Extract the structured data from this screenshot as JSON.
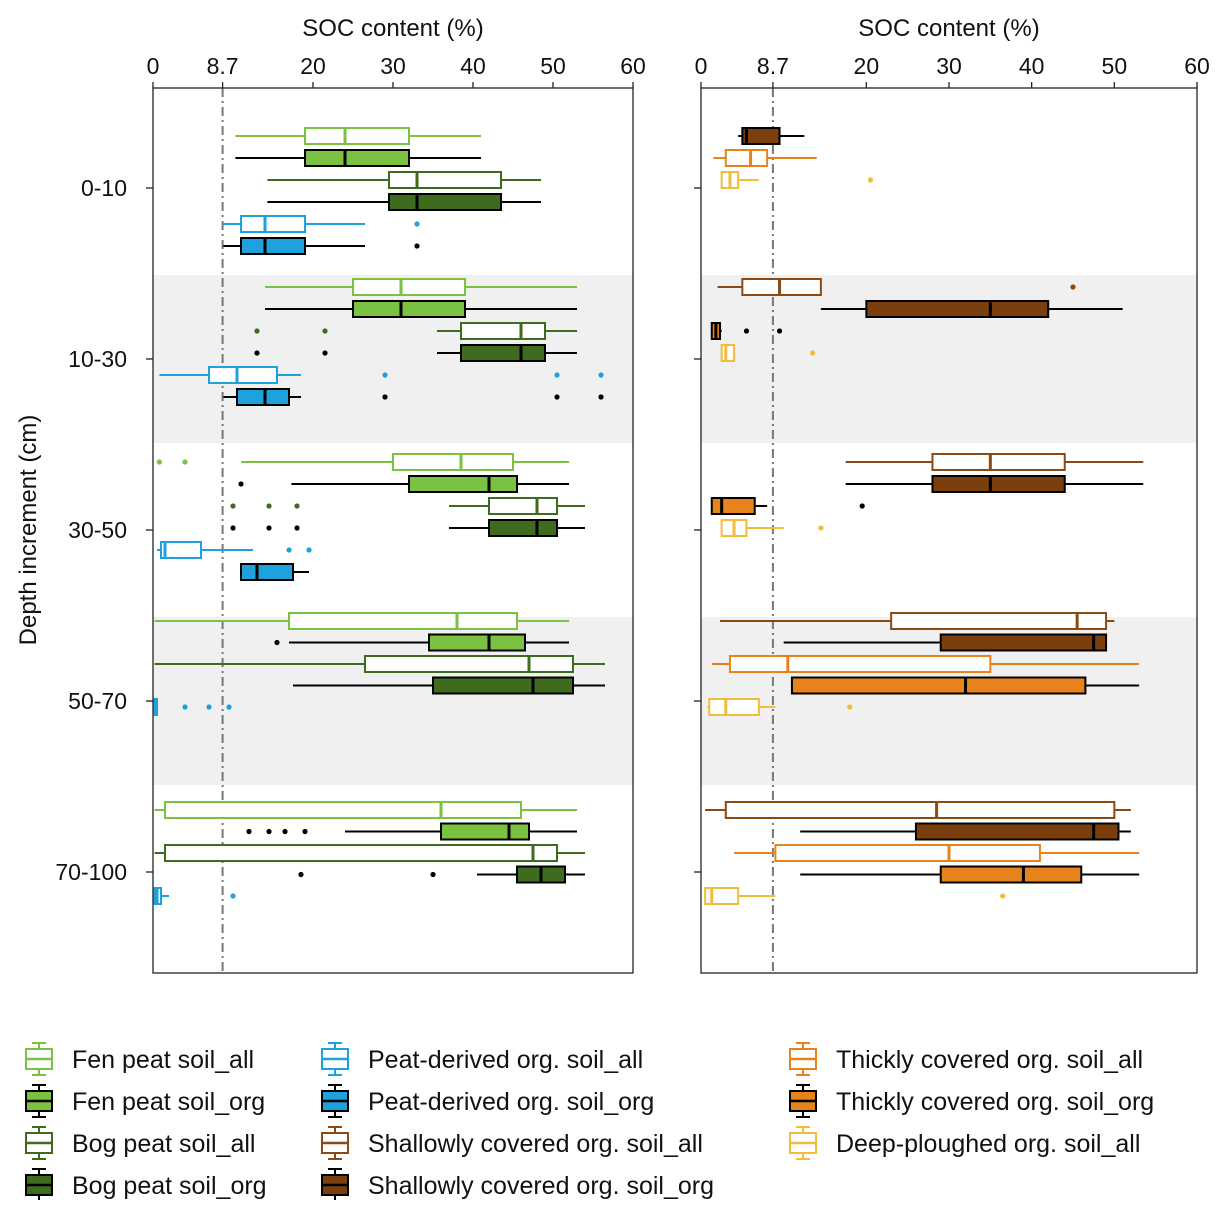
{
  "chart_data": {
    "type": "box",
    "ylabel": "Depth increment (cm)",
    "depth_increments": [
      "0-10",
      "10-30",
      "30-50",
      "50-70",
      "70-100"
    ],
    "reference_line": 8.7,
    "panels": [
      {
        "name": "left",
        "xlabel": "SOC content (%)",
        "xlim": [
          0,
          60
        ],
        "xticks": [
          "0",
          "8.7",
          "20",
          "30",
          "40",
          "50",
          "60"
        ],
        "xtick_values": [
          0,
          8.7,
          20,
          30,
          40,
          50,
          60
        ],
        "boxes": [
          {
            "depth": "0-10",
            "slot": 0,
            "series": "Fen peat soil_all",
            "whislo": 10.3,
            "q1": 19,
            "med": 24,
            "q3": 32,
            "whishi": 41,
            "outliers": []
          },
          {
            "depth": "0-10",
            "slot": 1,
            "series": "Fen peat soil_org",
            "whislo": 10.3,
            "q1": 19,
            "med": 24,
            "q3": 32,
            "whishi": 41,
            "outliers": []
          },
          {
            "depth": "0-10",
            "slot": 2,
            "series": "Bog peat soil_all",
            "whislo": 14.3,
            "q1": 29.5,
            "med": 33,
            "q3": 43.5,
            "whishi": 48.5,
            "outliers": []
          },
          {
            "depth": "0-10",
            "slot": 3,
            "series": "Bog peat soil_org",
            "whislo": 14.3,
            "q1": 29.5,
            "med": 33,
            "q3": 43.5,
            "whishi": 48.5,
            "outliers": []
          },
          {
            "depth": "0-10",
            "slot": 4,
            "series": "Peat-derived org. soil_all",
            "whislo": 8.8,
            "q1": 11,
            "med": 14,
            "q3": 19,
            "whishi": 26.5,
            "outliers": [
              33
            ]
          },
          {
            "depth": "0-10",
            "slot": 5,
            "series": "Peat-derived org. soil_org",
            "whislo": 8.8,
            "q1": 11,
            "med": 14,
            "q3": 19,
            "whishi": 26.5,
            "outliers": [
              33
            ]
          },
          {
            "depth": "10-30",
            "slot": 0,
            "series": "Fen peat soil_all",
            "whislo": 14,
            "q1": 25,
            "med": 31,
            "q3": 39,
            "whishi": 53,
            "outliers": []
          },
          {
            "depth": "10-30",
            "slot": 1,
            "series": "Fen peat soil_org",
            "whislo": 14,
            "q1": 25,
            "med": 31,
            "q3": 39,
            "whishi": 53,
            "outliers": []
          },
          {
            "depth": "10-30",
            "slot": 2,
            "series": "Bog peat soil_all",
            "whislo": 35.5,
            "q1": 38.5,
            "med": 46,
            "q3": 49,
            "whishi": 53,
            "outliers": [
              13,
              21.5
            ]
          },
          {
            "depth": "10-30",
            "slot": 3,
            "series": "Bog peat soil_org",
            "whislo": 35.5,
            "q1": 38.5,
            "med": 46,
            "q3": 49,
            "whishi": 53,
            "outliers": [
              13,
              21.5
            ]
          },
          {
            "depth": "10-30",
            "slot": 4,
            "series": "Peat-derived org. soil_all",
            "whislo": 0.8,
            "q1": 7,
            "med": 10.5,
            "q3": 15.5,
            "whishi": 18.5,
            "outliers": [
              29,
              50.5,
              56
            ]
          },
          {
            "depth": "10-30",
            "slot": 5,
            "series": "Peat-derived org. soil_org",
            "whislo": 8.8,
            "q1": 10.5,
            "med": 14,
            "q3": 17,
            "whishi": 18.5,
            "outliers": [
              29,
              50.5,
              56
            ]
          },
          {
            "depth": "30-50",
            "slot": 0,
            "series": "Fen peat soil_all",
            "whislo": 11,
            "q1": 30,
            "med": 38.5,
            "q3": 45,
            "whishi": 52,
            "outliers": [
              0.8,
              4
            ]
          },
          {
            "depth": "30-50",
            "slot": 1,
            "series": "Fen peat soil_org",
            "whislo": 17.3,
            "q1": 32,
            "med": 42,
            "q3": 45.5,
            "whishi": 52,
            "outliers": [
              11
            ]
          },
          {
            "depth": "30-50",
            "slot": 2,
            "series": "Bog peat soil_all",
            "whislo": 37,
            "q1": 42,
            "med": 48,
            "q3": 50.5,
            "whishi": 54,
            "outliers": [
              10,
              14.5,
              18
            ]
          },
          {
            "depth": "30-50",
            "slot": 3,
            "series": "Bog peat soil_org",
            "whislo": 37,
            "q1": 42,
            "med": 48,
            "q3": 50.5,
            "whishi": 54,
            "outliers": [
              10,
              14.5,
              18
            ]
          },
          {
            "depth": "30-50",
            "slot": 4,
            "series": "Peat-derived org. soil_all",
            "whislo": 0.5,
            "q1": 1,
            "med": 1.5,
            "q3": 6,
            "whishi": 12.5,
            "outliers": [
              17,
              19.5
            ]
          },
          {
            "depth": "30-50",
            "slot": 5,
            "series": "Peat-derived org. soil_org",
            "whislo": 11,
            "q1": 11,
            "med": 13,
            "q3": 17.5,
            "whishi": 19.5,
            "outliers": []
          },
          {
            "depth": "50-70",
            "slot": 0,
            "series": "Fen peat soil_all",
            "whislo": 0.2,
            "q1": 17,
            "med": 38,
            "q3": 45.5,
            "whishi": 52,
            "outliers": []
          },
          {
            "depth": "50-70",
            "slot": 1,
            "series": "Fen peat soil_org",
            "whislo": 17,
            "q1": 34.5,
            "med": 42,
            "q3": 46.5,
            "whishi": 52,
            "outliers": [
              15.5
            ]
          },
          {
            "depth": "50-70",
            "slot": 2,
            "series": "Bog peat soil_all",
            "whislo": 0.2,
            "q1": 26.5,
            "med": 47,
            "q3": 52.5,
            "whishi": 56.5,
            "outliers": []
          },
          {
            "depth": "50-70",
            "slot": 3,
            "series": "Bog peat soil_org",
            "whislo": 17.5,
            "q1": 35,
            "med": 47.5,
            "q3": 52.5,
            "whishi": 56.5,
            "outliers": []
          },
          {
            "depth": "50-70",
            "slot": 4,
            "series": "Peat-derived org. soil_all",
            "whislo": 0.2,
            "q1": 0.2,
            "med": 0.3,
            "q3": 0.5,
            "whishi": 0.5,
            "outliers": [
              4,
              7,
              9.5
            ]
          },
          {
            "depth": "70-100",
            "slot": 0,
            "series": "Fen peat soil_all",
            "whislo": 0.2,
            "q1": 1.5,
            "med": 36,
            "q3": 46,
            "whishi": 53,
            "outliers": []
          },
          {
            "depth": "70-100",
            "slot": 1,
            "series": "Fen peat soil_org",
            "whislo": 24,
            "q1": 36,
            "med": 44.5,
            "q3": 47,
            "whishi": 53,
            "outliers": [
              12,
              14.5,
              16.5,
              19
            ]
          },
          {
            "depth": "70-100",
            "slot": 2,
            "series": "Bog peat soil_all",
            "whislo": 0.2,
            "q1": 1.5,
            "med": 47.5,
            "q3": 50.5,
            "whishi": 54,
            "outliers": []
          },
          {
            "depth": "70-100",
            "slot": 3,
            "series": "Bog peat soil_org",
            "whislo": 40.5,
            "q1": 45.5,
            "med": 48.5,
            "q3": 51.5,
            "whishi": 54,
            "outliers": [
              18.5,
              35
            ]
          },
          {
            "depth": "70-100",
            "slot": 4,
            "series": "Peat-derived org. soil_all",
            "whislo": 0.2,
            "q1": 0.2,
            "med": 0.5,
            "q3": 1,
            "whishi": 2,
            "outliers": [
              10
            ]
          }
        ]
      },
      {
        "name": "right",
        "xlabel": "SOC content (%)",
        "xlim": [
          0,
          60
        ],
        "xticks": [
          "0",
          "8.7",
          "20",
          "30",
          "40",
          "50",
          "60"
        ],
        "xtick_values": [
          0,
          8.7,
          20,
          30,
          40,
          50,
          60
        ],
        "boxes": [
          {
            "depth": "0-10",
            "slot": 0,
            "series": "Shallowly covered org. soil_org",
            "whislo": 4.5,
            "q1": 5,
            "med": 5.5,
            "q3": 9.5,
            "whishi": 12.5,
            "outliers": []
          },
          {
            "depth": "0-10",
            "slot": 1,
            "series": "Thickly covered org. soil_all",
            "whislo": 1.5,
            "q1": 3,
            "med": 6,
            "q3": 8,
            "whishi": 14,
            "outliers": []
          },
          {
            "depth": "0-10",
            "slot": 2,
            "series": "Deep-ploughed org. soil_all",
            "whislo": 2.5,
            "q1": 2.5,
            "med": 3.5,
            "q3": 4.5,
            "whishi": 7,
            "outliers": [
              20.5
            ]
          },
          {
            "depth": "10-30",
            "slot": 0,
            "series": "Shallowly covered org. soil_all",
            "whislo": 2,
            "q1": 5,
            "med": 9.5,
            "q3": 14.5,
            "whishi": 14.5,
            "outliers": [
              45
            ]
          },
          {
            "depth": "10-30",
            "slot": 1,
            "series": "Shallowly covered org. soil_org",
            "whislo": 14.5,
            "q1": 20,
            "med": 35,
            "q3": 42,
            "whishi": 51,
            "outliers": []
          },
          {
            "depth": "10-30",
            "slot": 2,
            "series": "Thickly covered org. soil_org",
            "whislo": 1.3,
            "q1": 1.3,
            "med": 1.8,
            "q3": 2.3,
            "whishi": 2.5,
            "outliers": [
              5.5,
              9.5
            ]
          },
          {
            "depth": "10-30",
            "slot": 3,
            "series": "Deep-ploughed org. soil_all",
            "whislo": 2.5,
            "q1": 2.5,
            "med": 3,
            "q3": 4,
            "whishi": 4,
            "outliers": [
              13.5
            ]
          },
          {
            "depth": "30-50",
            "slot": 0,
            "series": "Shallowly covered org. soil_all",
            "whislo": 17.5,
            "q1": 28,
            "med": 35,
            "q3": 44,
            "whishi": 53.5,
            "outliers": []
          },
          {
            "depth": "30-50",
            "slot": 1,
            "series": "Shallowly covered org. soil_org",
            "whislo": 17.5,
            "q1": 28,
            "med": 35,
            "q3": 44,
            "whishi": 53.5,
            "outliers": []
          },
          {
            "depth": "30-50",
            "slot": 2,
            "series": "Thickly covered org. soil_org",
            "whislo": 1.3,
            "q1": 1.3,
            "med": 2.5,
            "q3": 6.5,
            "whishi": 8,
            "outliers": [
              19.5
            ]
          },
          {
            "depth": "30-50",
            "slot": 3,
            "series": "Deep-ploughed org. soil_all",
            "whislo": 2.5,
            "q1": 2.5,
            "med": 4,
            "q3": 5.5,
            "whishi": 10,
            "outliers": [
              14.5
            ]
          },
          {
            "depth": "50-70",
            "slot": 0,
            "series": "Shallowly covered org. soil_all",
            "whislo": 2.3,
            "q1": 23,
            "med": 45.5,
            "q3": 49,
            "whishi": 50,
            "outliers": []
          },
          {
            "depth": "50-70",
            "slot": 1,
            "series": "Shallowly covered org. soil_org",
            "whislo": 10,
            "q1": 29,
            "med": 47.5,
            "q3": 49,
            "whishi": 49,
            "outliers": []
          },
          {
            "depth": "50-70",
            "slot": 2,
            "series": "Thickly covered org. soil_all",
            "whislo": 1.3,
            "q1": 3.5,
            "med": 10.5,
            "q3": 35,
            "whishi": 53,
            "outliers": []
          },
          {
            "depth": "50-70",
            "slot": 3,
            "series": "Thickly covered org. soil_org",
            "whislo": 11,
            "q1": 11,
            "med": 32,
            "q3": 46.5,
            "whishi": 53,
            "outliers": []
          },
          {
            "depth": "50-70",
            "slot": 4,
            "series": "Deep-ploughed org. soil_all",
            "whislo": 0.8,
            "q1": 1,
            "med": 3,
            "q3": 7,
            "whishi": 9,
            "outliers": [
              18
            ]
          },
          {
            "depth": "70-100",
            "slot": 0,
            "series": "Shallowly covered org. soil_all",
            "whislo": 0.5,
            "q1": 3,
            "med": 28.5,
            "q3": 50,
            "whishi": 52,
            "outliers": []
          },
          {
            "depth": "70-100",
            "slot": 1,
            "series": "Shallowly covered org. soil_org",
            "whislo": 12,
            "q1": 26,
            "med": 47.5,
            "q3": 50.5,
            "whishi": 52,
            "outliers": []
          },
          {
            "depth": "70-100",
            "slot": 2,
            "series": "Thickly covered org. soil_all",
            "whislo": 4,
            "q1": 9,
            "med": 30,
            "q3": 41,
            "whishi": 53,
            "outliers": []
          },
          {
            "depth": "70-100",
            "slot": 3,
            "series": "Thickly covered org. soil_org",
            "whislo": 12,
            "q1": 29,
            "med": 39,
            "q3": 46,
            "whishi": 53,
            "outliers": []
          },
          {
            "depth": "70-100",
            "slot": 4,
            "series": "Deep-ploughed org. soil_all",
            "whislo": 0.5,
            "q1": 0.5,
            "med": 1.3,
            "q3": 4.5,
            "whishi": 9,
            "outliers": [
              36.5
            ]
          }
        ]
      }
    ],
    "legend": {
      "placement": "bottom",
      "columns": [
        [
          "Fen peat soil_all",
          "Fen peat soil_org",
          "Bog peat soil_all",
          "Bog peat soil_org"
        ],
        [
          "Peat-derived org. soil_all",
          "Peat-derived org. soil_org",
          "Shallowly covered org. soil_all",
          "Shallowly covered org. soil_org"
        ],
        [
          "Thickly covered org. soil_all",
          "Thickly covered org. soil_org",
          "Deep-ploughed org. soil_all"
        ]
      ]
    },
    "series_styles": {
      "Fen peat soil_all": {
        "stroke": "#7cc242",
        "fill": "#ffffff"
      },
      "Fen peat soil_org": {
        "stroke": "#000000",
        "fill": "#7cc242",
        "median": "#000000"
      },
      "Bog peat soil_all": {
        "stroke": "#3f6b1f",
        "fill": "#ffffff"
      },
      "Bog peat soil_org": {
        "stroke": "#000000",
        "fill": "#3f6b1f",
        "median": "#000000"
      },
      "Peat-derived org. soil_all": {
        "stroke": "#1ea1dc",
        "fill": "#ffffff"
      },
      "Peat-derived org. soil_org": {
        "stroke": "#000000",
        "fill": "#1ea1dc",
        "median": "#000000"
      },
      "Shallowly covered org. soil_all": {
        "stroke": "#8b4a13",
        "fill": "#ffffff"
      },
      "Shallowly covered org. soil_org": {
        "stroke": "#000000",
        "fill": "#7b3f0e",
        "median": "#000000"
      },
      "Thickly covered org. soil_all": {
        "stroke": "#e8821c",
        "fill": "#ffffff"
      },
      "Thickly covered org. soil_org": {
        "stroke": "#000000",
        "fill": "#e8821c",
        "median": "#000000"
      },
      "Deep-ploughed org. soil_all": {
        "stroke": "#f1bd3a",
        "fill": "#ffffff"
      }
    },
    "band_color": "#f0f0f0",
    "reference_line_color": "#777777"
  }
}
